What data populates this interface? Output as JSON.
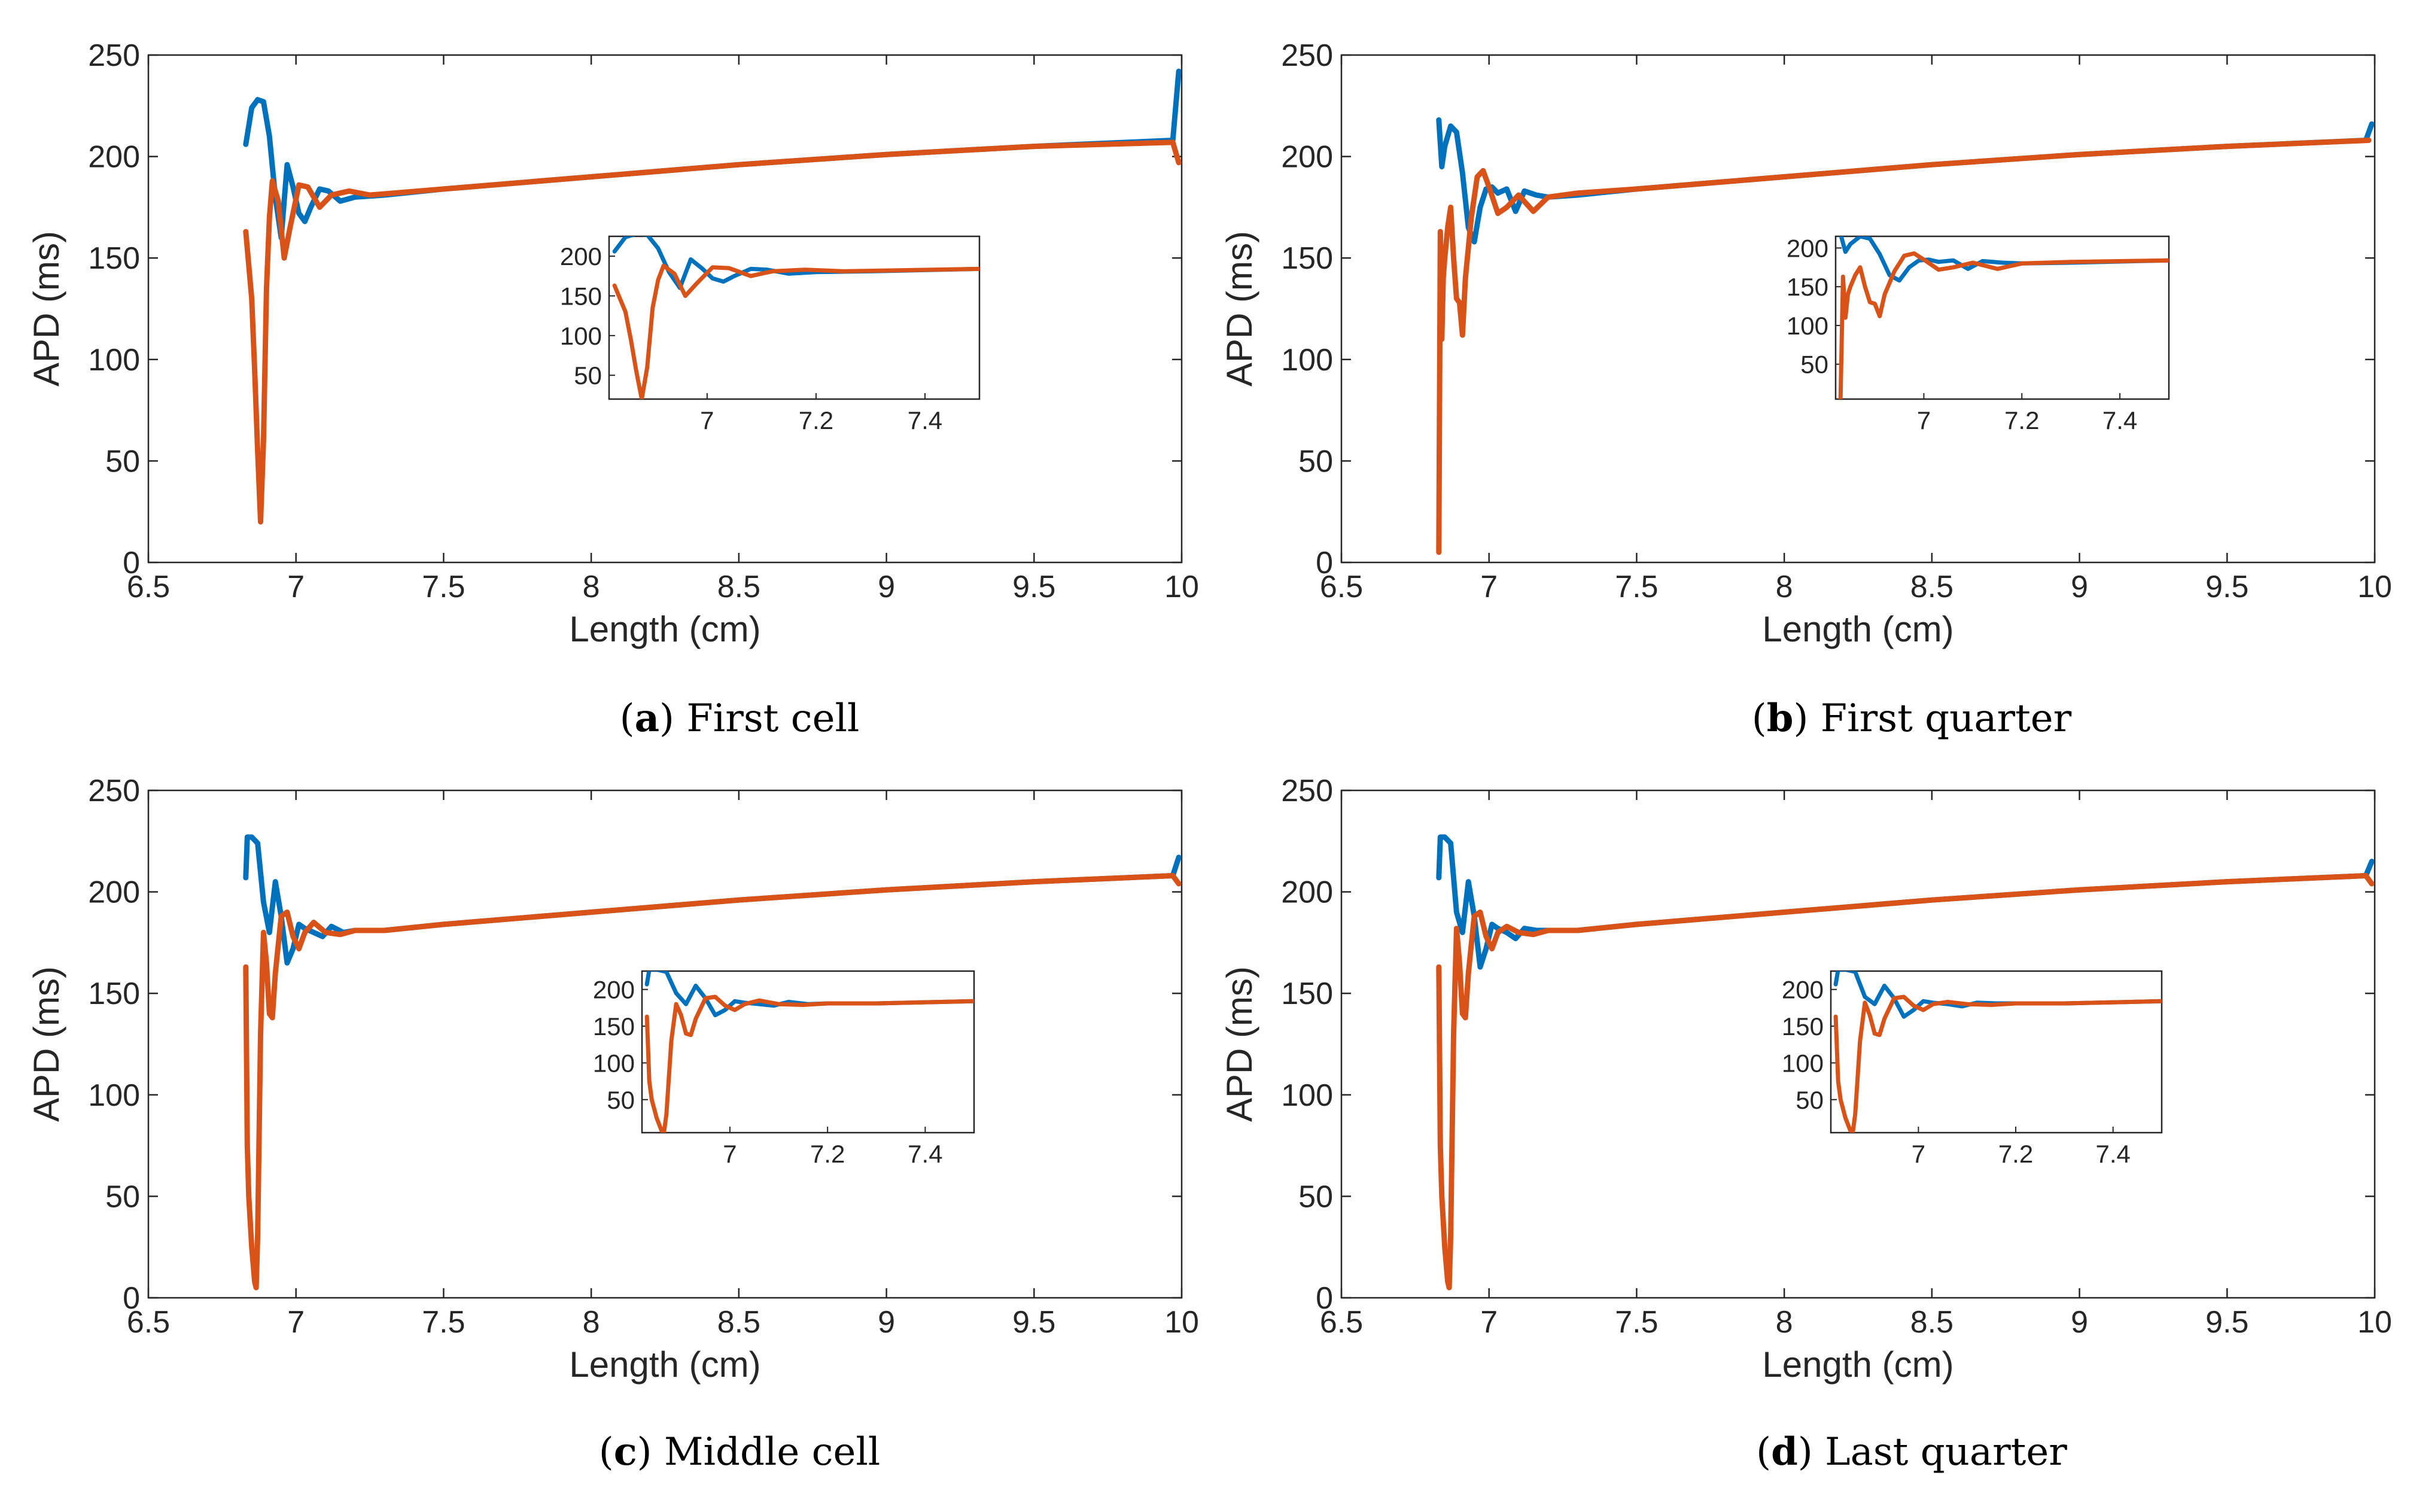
{
  "colors": {
    "series_blue": "#0072BD",
    "series_orange": "#D95319",
    "axis": "#262626",
    "background": "#ffffff"
  },
  "chart_data": [
    {
      "id": "a",
      "type": "line",
      "caption_letter": "a",
      "caption_text": "First cell",
      "xlabel": "Length (cm)",
      "ylabel": "APD (ms)",
      "xlim": [
        6.5,
        10
      ],
      "ylim": [
        0,
        250
      ],
      "xticks": [
        6.5,
        7,
        7.5,
        8,
        8.5,
        9,
        9.5,
        10
      ],
      "xtick_labels": [
        "6.5",
        "7",
        "7.5",
        "8",
        "8.5",
        "9",
        "9.5",
        "10"
      ],
      "yticks": [
        0,
        50,
        100,
        150,
        200,
        250
      ],
      "ytick_labels": [
        "0",
        "50",
        "100",
        "150",
        "200",
        "250"
      ],
      "series": [
        {
          "name": "blue",
          "color": "#0072BD",
          "x": [
            6.83,
            6.85,
            6.87,
            6.89,
            6.91,
            6.93,
            6.95,
            6.97,
            6.99,
            7.01,
            7.03,
            7.05,
            7.08,
            7.11,
            7.15,
            7.2,
            7.3,
            7.5,
            8.0,
            8.5,
            9.0,
            9.5,
            9.97,
            9.99
          ],
          "y": [
            206,
            224,
            228,
            227,
            210,
            180,
            160,
            196,
            185,
            172,
            168,
            175,
            184,
            183,
            178,
            180,
            181,
            184,
            190,
            196,
            201,
            205,
            208,
            242
          ]
        },
        {
          "name": "orange",
          "color": "#D95319",
          "x": [
            6.83,
            6.85,
            6.86,
            6.87,
            6.88,
            6.89,
            6.9,
            6.91,
            6.92,
            6.94,
            6.96,
            6.98,
            7.01,
            7.04,
            7.08,
            7.12,
            7.18,
            7.25,
            7.5,
            8.0,
            8.5,
            9.0,
            9.5,
            9.97,
            9.99
          ],
          "y": [
            163,
            130,
            95,
            55,
            20,
            60,
            135,
            170,
            188,
            178,
            150,
            165,
            186,
            185,
            175,
            181,
            183,
            181,
            184,
            190,
            196,
            201,
            205,
            207,
            197
          ]
        }
      ],
      "inset": {
        "xlim": [
          6.82,
          7.5
        ],
        "ylim": [
          20,
          225
        ],
        "xticks": [
          7,
          7.2,
          7.4
        ],
        "xtick_labels": [
          "7",
          "7.2",
          "7.4"
        ],
        "yticks": [
          50,
          100,
          150,
          200
        ],
        "ytick_labels": [
          "50",
          "100",
          "150",
          "200"
        ]
      }
    },
    {
      "id": "b",
      "type": "line",
      "caption_letter": "b",
      "caption_text": "First quarter",
      "xlabel": "Length (cm)",
      "ylabel": "APD (ms)",
      "xlim": [
        6.5,
        10
      ],
      "ylim": [
        0,
        250
      ],
      "xticks": [
        6.5,
        7,
        7.5,
        8,
        8.5,
        9,
        9.5,
        10
      ],
      "xtick_labels": [
        "6.5",
        "7",
        "7.5",
        "8",
        "8.5",
        "9",
        "9.5",
        "10"
      ],
      "yticks": [
        0,
        50,
        100,
        150,
        200,
        250
      ],
      "ytick_labels": [
        "0",
        "50",
        "100",
        "150",
        "200",
        "250"
      ],
      "series": [
        {
          "name": "blue",
          "color": "#0072BD",
          "x": [
            6.83,
            6.84,
            6.85,
            6.87,
            6.89,
            6.91,
            6.93,
            6.95,
            6.97,
            6.99,
            7.01,
            7.03,
            7.06,
            7.09,
            7.12,
            7.16,
            7.2,
            7.3,
            7.5,
            8.0,
            8.5,
            9.0,
            9.5,
            9.97,
            9.99
          ],
          "y": [
            218,
            195,
            205,
            215,
            212,
            192,
            165,
            158,
            175,
            184,
            185,
            182,
            184,
            173,
            183,
            181,
            180,
            181,
            184,
            190,
            196,
            201,
            205,
            208,
            216
          ]
        },
        {
          "name": "orange",
          "color": "#D95319",
          "x": [
            6.83,
            6.835,
            6.84,
            6.845,
            6.85,
            6.86,
            6.87,
            6.88,
            6.89,
            6.9,
            6.91,
            6.92,
            6.94,
            6.96,
            6.98,
            7.0,
            7.03,
            7.06,
            7.1,
            7.15,
            7.2,
            7.3,
            7.5,
            8.0,
            8.5,
            9.0,
            9.5,
            9.98
          ],
          "y": [
            5,
            163,
            110,
            140,
            150,
            165,
            175,
            150,
            130,
            128,
            112,
            140,
            170,
            190,
            193,
            185,
            172,
            175,
            181,
            173,
            180,
            182,
            184,
            190,
            196,
            201,
            205,
            208
          ]
        }
      ],
      "inset": {
        "xlim": [
          6.82,
          7.5
        ],
        "ylim": [
          5,
          215
        ],
        "xticks": [
          7,
          7.2,
          7.4
        ],
        "xtick_labels": [
          "7",
          "7.2",
          "7.4"
        ],
        "yticks": [
          50,
          100,
          150,
          200
        ],
        "ytick_labels": [
          "50",
          "100",
          "150",
          "200"
        ]
      }
    },
    {
      "id": "c",
      "type": "line",
      "caption_letter": "c",
      "caption_text": "Middle cell",
      "xlabel": "Length (cm)",
      "ylabel": "APD (ms)",
      "xlim": [
        6.5,
        10
      ],
      "ylim": [
        0,
        250
      ],
      "xticks": [
        6.5,
        7,
        7.5,
        8,
        8.5,
        9,
        9.5,
        10
      ],
      "xtick_labels": [
        "6.5",
        "7",
        "7.5",
        "8",
        "8.5",
        "9",
        "9.5",
        "10"
      ],
      "yticks": [
        0,
        50,
        100,
        150,
        200,
        250
      ],
      "ytick_labels": [
        "0",
        "50",
        "100",
        "150",
        "200",
        "250"
      ],
      "series": [
        {
          "name": "blue",
          "color": "#0072BD",
          "x": [
            6.83,
            6.835,
            6.85,
            6.87,
            6.89,
            6.91,
            6.93,
            6.95,
            6.97,
            6.99,
            7.01,
            7.03,
            7.06,
            7.09,
            7.12,
            7.16,
            7.2,
            7.3,
            7.5,
            8.0,
            8.5,
            9.0,
            9.5,
            9.97,
            9.99
          ],
          "y": [
            207,
            227,
            227,
            224,
            195,
            180,
            205,
            188,
            165,
            172,
            184,
            182,
            180,
            178,
            183,
            180,
            181,
            181,
            184,
            190,
            196,
            201,
            205,
            208,
            217
          ]
        },
        {
          "name": "orange",
          "color": "#D95319",
          "x": [
            6.83,
            6.835,
            6.84,
            6.85,
            6.86,
            6.865,
            6.87,
            6.88,
            6.89,
            6.9,
            6.91,
            6.92,
            6.93,
            6.95,
            6.97,
            6.99,
            7.01,
            7.03,
            7.06,
            7.1,
            7.15,
            7.2,
            7.3,
            7.5,
            8.0,
            8.5,
            9.0,
            9.5,
            9.97,
            9.99
          ],
          "y": [
            163,
            75,
            50,
            25,
            8,
            5,
            30,
            130,
            180,
            165,
            140,
            138,
            160,
            188,
            190,
            178,
            172,
            180,
            185,
            180,
            179,
            181,
            181,
            184,
            190,
            196,
            201,
            205,
            208,
            204
          ]
        }
      ],
      "inset": {
        "xlim": [
          6.82,
          7.5
        ],
        "ylim": [
          5,
          225
        ],
        "xticks": [
          7,
          7.2,
          7.4
        ],
        "xtick_labels": [
          "7",
          "7.2",
          "7.4"
        ],
        "yticks": [
          50,
          100,
          150,
          200
        ],
        "ytick_labels": [
          "50",
          "100",
          "150",
          "200"
        ]
      }
    },
    {
      "id": "d",
      "type": "line",
      "caption_letter": "d",
      "caption_text": "Last quarter",
      "xlabel": "Length (cm)",
      "ylabel": "APD (ms)",
      "xlim": [
        6.5,
        10
      ],
      "ylim": [
        0,
        250
      ],
      "xticks": [
        6.5,
        7,
        7.5,
        8,
        8.5,
        9,
        9.5,
        10
      ],
      "xtick_labels": [
        "6.5",
        "7",
        "7.5",
        "8",
        "8.5",
        "9",
        "9.5",
        "10"
      ],
      "yticks": [
        0,
        50,
        100,
        150,
        200,
        250
      ],
      "ytick_labels": [
        "0",
        "50",
        "100",
        "150",
        "200",
        "250"
      ],
      "series": [
        {
          "name": "blue",
          "color": "#0072BD",
          "x": [
            6.83,
            6.835,
            6.85,
            6.87,
            6.89,
            6.91,
            6.93,
            6.95,
            6.97,
            6.99,
            7.01,
            7.03,
            7.06,
            7.09,
            7.12,
            7.16,
            7.2,
            7.3,
            7.5,
            8.0,
            8.5,
            9.0,
            9.5,
            9.97,
            9.99
          ],
          "y": [
            207,
            227,
            227,
            224,
            190,
            180,
            205,
            188,
            163,
            172,
            184,
            182,
            180,
            177,
            182,
            181,
            181,
            181,
            184,
            190,
            196,
            201,
            205,
            208,
            215
          ]
        },
        {
          "name": "orange",
          "color": "#D95319",
          "x": [
            6.83,
            6.835,
            6.84,
            6.85,
            6.86,
            6.865,
            6.87,
            6.88,
            6.89,
            6.9,
            6.91,
            6.92,
            6.93,
            6.95,
            6.97,
            6.99,
            7.01,
            7.03,
            7.06,
            7.1,
            7.15,
            7.2,
            7.3,
            7.5,
            8.0,
            8.5,
            9.0,
            9.5,
            9.97,
            9.99
          ],
          "y": [
            163,
            75,
            50,
            25,
            8,
            5,
            30,
            130,
            182,
            165,
            140,
            138,
            160,
            188,
            190,
            178,
            172,
            180,
            183,
            180,
            179,
            181,
            181,
            184,
            190,
            196,
            201,
            205,
            208,
            204
          ]
        }
      ],
      "inset": {
        "xlim": [
          6.82,
          7.5
        ],
        "ylim": [
          5,
          225
        ],
        "xticks": [
          7,
          7.2,
          7.4
        ],
        "xtick_labels": [
          "7",
          "7.2",
          "7.4"
        ],
        "yticks": [
          50,
          100,
          150,
          200
        ],
        "ytick_labels": [
          "50",
          "100",
          "150",
          "200"
        ]
      }
    }
  ]
}
